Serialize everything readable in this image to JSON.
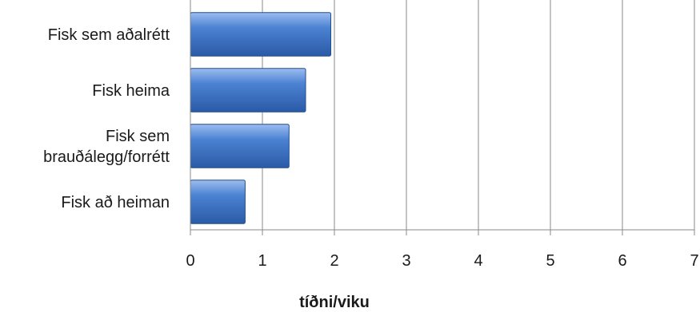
{
  "chart_data": {
    "type": "bar",
    "orientation": "horizontal",
    "categories": [
      "Fisk sem aðalrétt",
      "Fisk heima",
      "Fisk sem brauðálegg/forrétt",
      "Fisk að heiman"
    ],
    "category_lines": [
      [
        "Fisk sem aðalrétt"
      ],
      [
        "Fisk heima"
      ],
      [
        "Fisk sem",
        "brauðálegg/forrétt"
      ],
      [
        "Fisk að heiman"
      ]
    ],
    "values": [
      1.95,
      1.6,
      1.37,
      0.76
    ],
    "xlabel": "tíðni/viku",
    "xlim": [
      0,
      7
    ],
    "xticks": [
      "0",
      "1",
      "2",
      "3",
      "4",
      "5",
      "6",
      "7"
    ],
    "grid": "vertical",
    "legend": "none",
    "bar_color": "#3a6fc0",
    "bar_highlight": "#8fb4e8",
    "bar_edge": "#1f4f94"
  }
}
